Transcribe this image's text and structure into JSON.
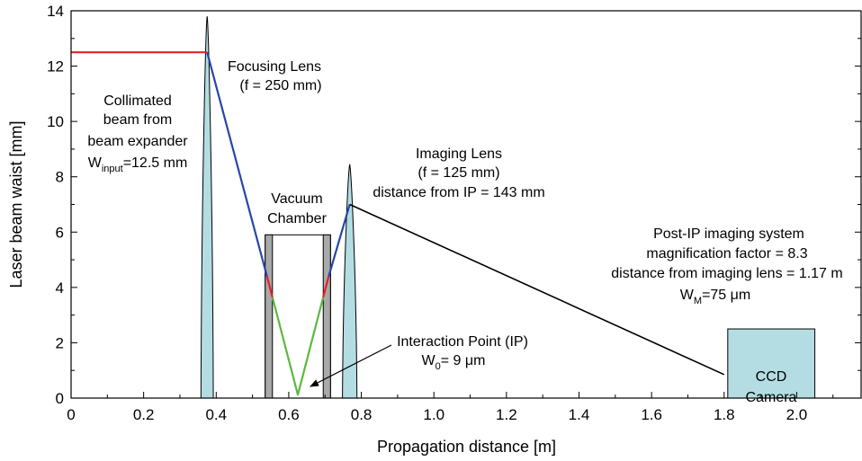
{
  "chart_data": {
    "type": "line",
    "xlabel": "Propagation distance [m]",
    "ylabel": "Laser beam waist [mm]",
    "xlim": [
      0,
      2.18
    ],
    "ylim": [
      0,
      14
    ],
    "xticks": [
      "0",
      "0.2",
      "0.4",
      "0.6",
      "0.8",
      "1.0",
      "1.2",
      "1.4",
      "1.6",
      "1.8",
      "2.0"
    ],
    "xtick_values": [
      0,
      0.2,
      0.4,
      0.6,
      0.8,
      1.0,
      1.2,
      1.4,
      1.6,
      1.8,
      2.0
    ],
    "yticks": [
      "0",
      "2",
      "4",
      "6",
      "8",
      "10",
      "12",
      "14"
    ],
    "ytick_values": [
      0,
      2,
      4,
      6,
      8,
      10,
      12,
      14
    ],
    "grid": false,
    "series": [
      {
        "name": "",
        "color": "#e8202a",
        "points": [
          [
            0,
            12.5
          ],
          [
            0.375,
            12.5
          ]
        ]
      },
      {
        "name": "",
        "color": "#2846a8",
        "points": [
          [
            0.375,
            12.5
          ],
          [
            0.54,
            4.4
          ]
        ]
      },
      {
        "name": "",
        "color": "#e8202a",
        "points": [
          [
            0.54,
            4.4
          ],
          [
            0.555,
            3.65
          ]
        ]
      },
      {
        "name": "",
        "color": "#5cb840",
        "points": [
          [
            0.555,
            3.65
          ],
          [
            0.625,
            0.12
          ],
          [
            0.695,
            3.65
          ]
        ]
      },
      {
        "name": "",
        "color": "#e8202a",
        "points": [
          [
            0.695,
            3.65
          ],
          [
            0.71,
            4.4
          ]
        ]
      },
      {
        "name": "",
        "color": "#2846a8",
        "points": [
          [
            0.71,
            4.4
          ],
          [
            0.768,
            7.0
          ]
        ]
      },
      {
        "name": "",
        "color": "#000000",
        "points": [
          [
            0.768,
            7.0
          ],
          [
            1.8,
            0.85
          ]
        ]
      }
    ],
    "lenses": [
      {
        "center": 0.375,
        "half_width": 0.017,
        "peak": 13.8
      },
      {
        "center": 0.768,
        "half_width": 0.02,
        "peak": 8.45
      }
    ],
    "chamber": {
      "x0": 0.535,
      "x1": 0.715,
      "top": 5.9,
      "wall": 0.02
    },
    "camera": {
      "x0": 1.81,
      "x1": 2.05,
      "top": 2.5,
      "label_lines": [
        "CCD",
        "Camera"
      ]
    },
    "annotations": {
      "focusing": [
        "Focusing Lens",
        "(f = 250 mm)"
      ],
      "collimated": [
        "Collimated",
        "beam from",
        "beam expander"
      ],
      "w_input": {
        "main": "W",
        "sub": "input",
        "rest": "=12.5 mm"
      },
      "imaging": [
        "Imaging Lens",
        "(f = 125 mm)",
        "distance from IP = 143 mm"
      ],
      "vacuum": [
        "Vacuum",
        "Chamber"
      ],
      "post_ip": [
        "Post-IP imaging system",
        "magnification factor = 8.3",
        "distance from imaging lens = 1.17 m"
      ],
      "w_m": {
        "main": "W",
        "sub": "M",
        "rest": "=75 μm"
      },
      "ip": "Interaction Point (IP)",
      "w0": {
        "main": "W",
        "sub": "0",
        "rest": "= 9 μm"
      }
    },
    "colors": {
      "lens": "#b3dde3",
      "camera": "#b3dde3",
      "chamber_wall": "#a9a9a9"
    }
  }
}
